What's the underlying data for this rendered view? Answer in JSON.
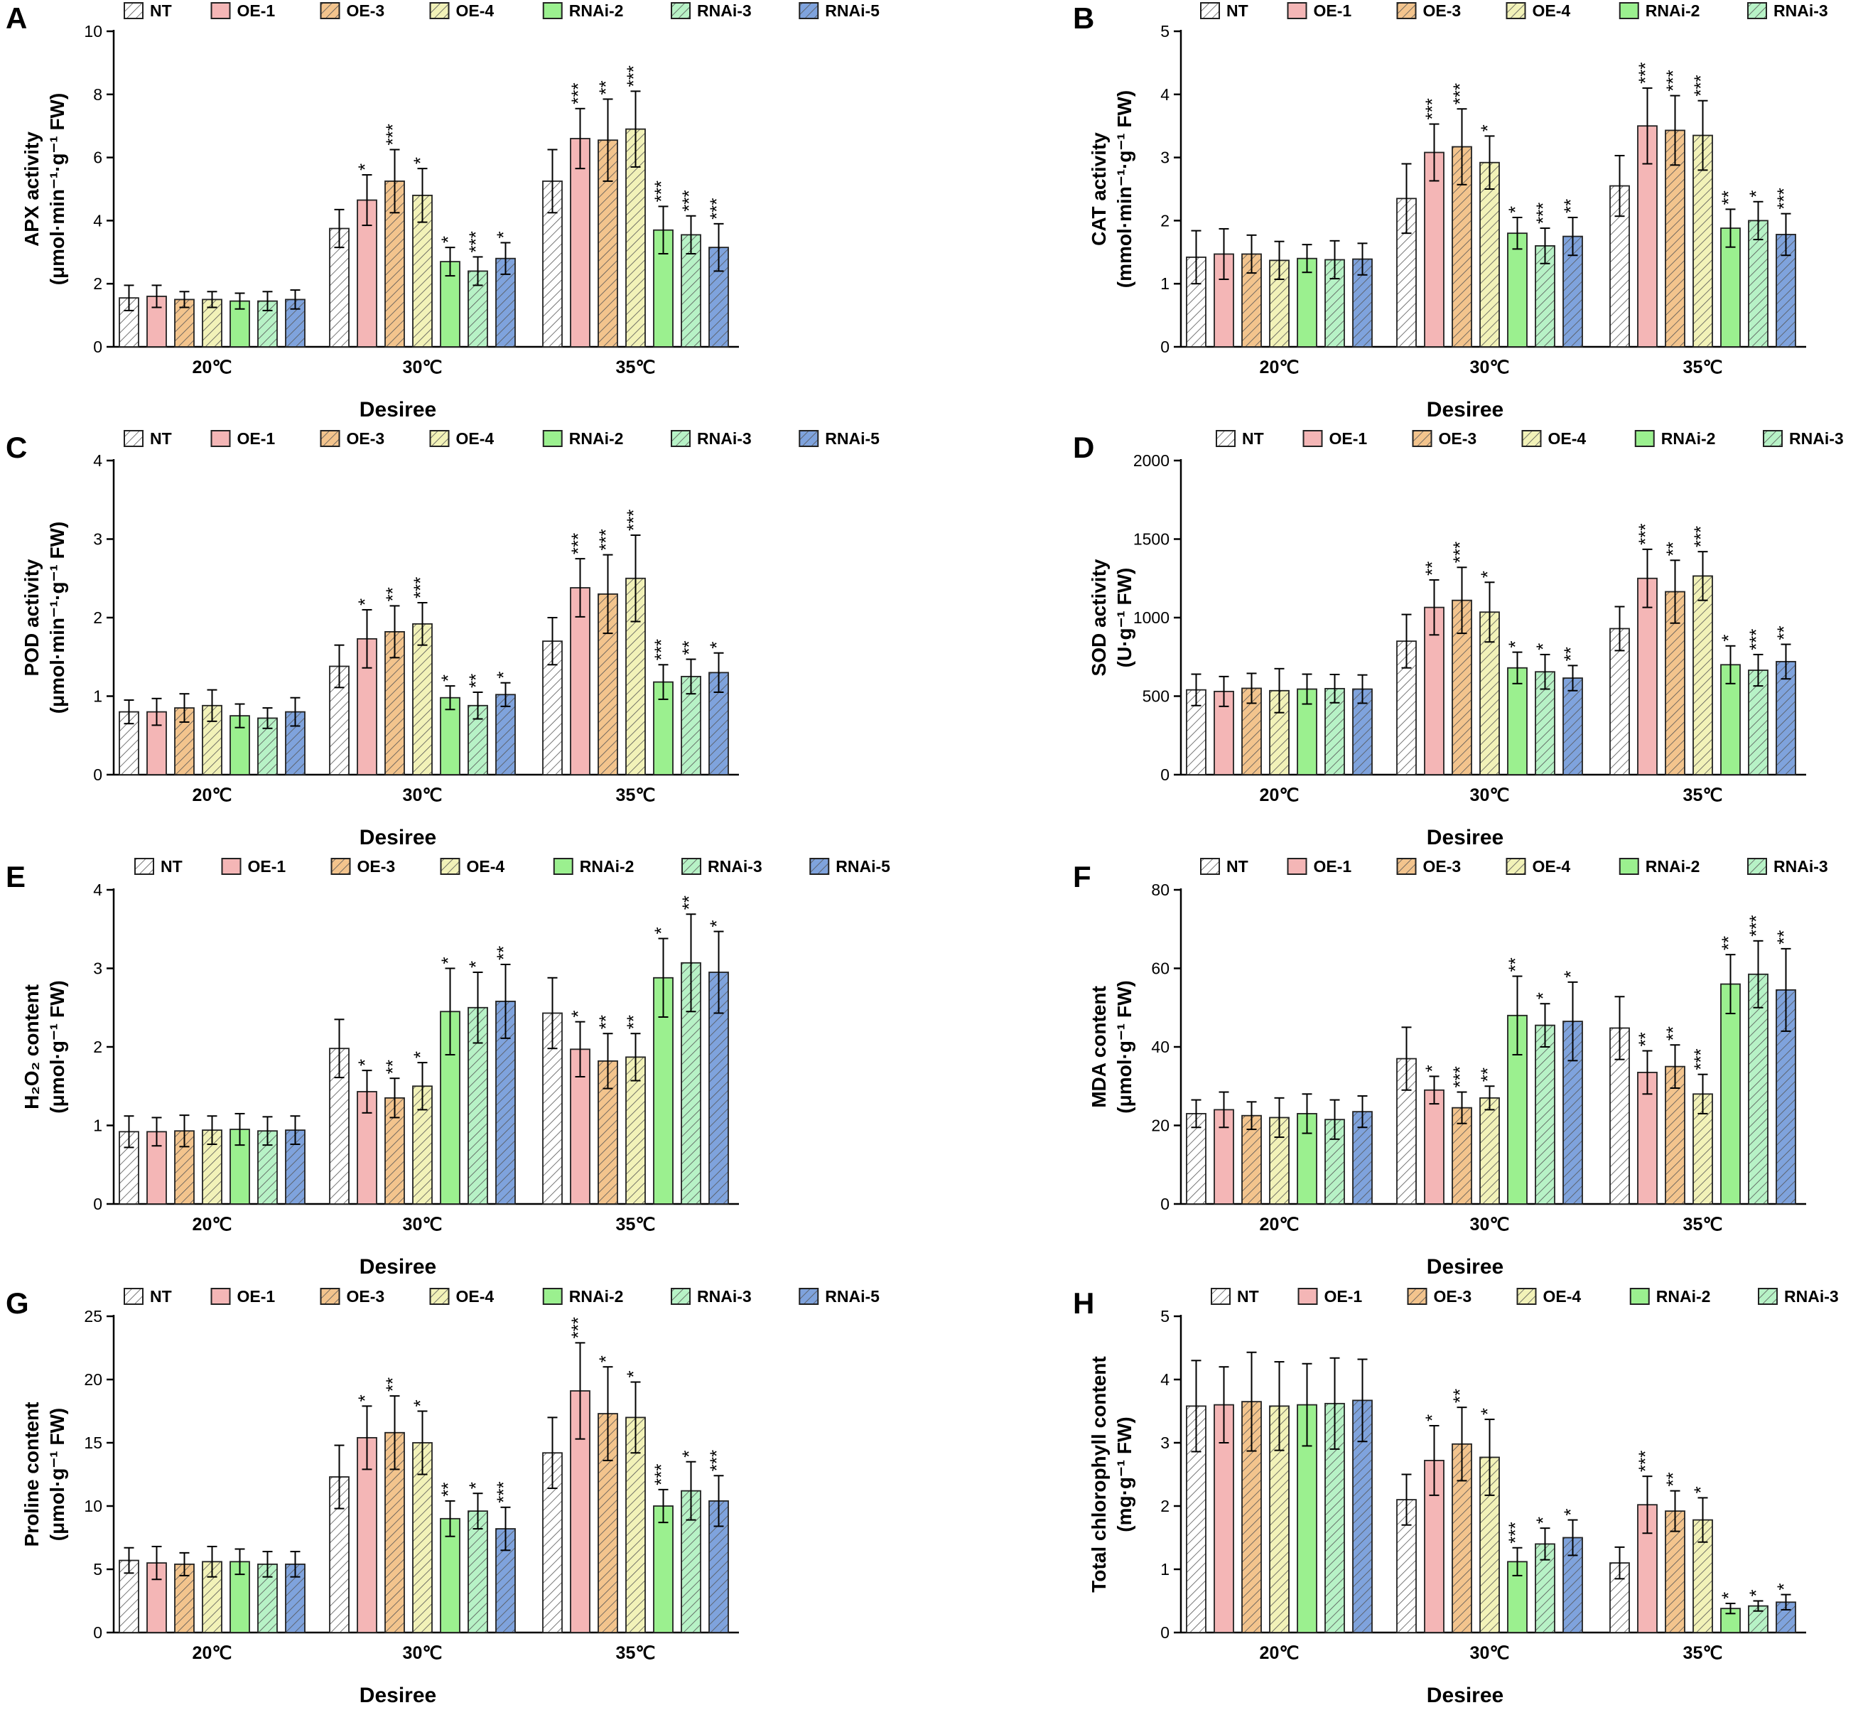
{
  "figure": {
    "legend": [
      "NT",
      "OE-1",
      "OE-3",
      "OE-4",
      "RNAi-2",
      "RNAi-3",
      "RNAi-5"
    ],
    "colors": {
      "NT": "#ffffff",
      "OE-1": "#f4b6b6",
      "OE-3": "#f3c48d",
      "OE-4": "#f2f2b8",
      "RNAi-2": "#9bf08f",
      "RNAi-3": "#b7f2c6",
      "RNAi-5": "#7fa3dd"
    },
    "hatched": [
      "NT",
      "OE-3",
      "OE-4",
      "RNAi-3",
      "RNAi-5"
    ],
    "categories": [
      "20℃",
      "30℃",
      "35℃"
    ],
    "xlabel": "Desiree"
  },
  "chart_data": [
    {
      "panel": "A",
      "type": "bar",
      "ylabel_line1": "APX activity",
      "ylabel_line2": "(μmol·min⁻¹·g⁻¹ FW)",
      "ylim": [
        0,
        10
      ],
      "yticks": [
        0,
        2,
        4,
        6,
        8,
        10
      ],
      "series": [
        {
          "name": "NT",
          "values": [
            1.55,
            3.75,
            5.25
          ],
          "errors": [
            0.4,
            0.6,
            1.0
          ],
          "sig": [
            "",
            "",
            ""
          ]
        },
        {
          "name": "OE-1",
          "values": [
            1.6,
            4.65,
            6.6
          ],
          "errors": [
            0.35,
            0.8,
            0.95
          ],
          "sig": [
            "",
            "*",
            "***"
          ]
        },
        {
          "name": "OE-3",
          "values": [
            1.5,
            5.25,
            6.55
          ],
          "errors": [
            0.25,
            1.0,
            1.3
          ],
          "sig": [
            "",
            "***",
            "**"
          ]
        },
        {
          "name": "OE-4",
          "values": [
            1.5,
            4.8,
            6.9
          ],
          "errors": [
            0.25,
            0.85,
            1.2
          ],
          "sig": [
            "",
            "*",
            "***"
          ]
        },
        {
          "name": "RNAi-2",
          "values": [
            1.45,
            2.7,
            3.7
          ],
          "errors": [
            0.25,
            0.45,
            0.75
          ],
          "sig": [
            "",
            "*",
            "***"
          ]
        },
        {
          "name": "RNAi-3",
          "values": [
            1.45,
            2.4,
            3.55
          ],
          "errors": [
            0.3,
            0.45,
            0.6
          ],
          "sig": [
            "",
            "***",
            "***"
          ]
        },
        {
          "name": "RNAi-5",
          "values": [
            1.5,
            2.8,
            3.15
          ],
          "errors": [
            0.3,
            0.5,
            0.75
          ],
          "sig": [
            "",
            "*",
            "***"
          ]
        }
      ]
    },
    {
      "panel": "B",
      "type": "bar",
      "ylabel_line1": "CAT activity",
      "ylabel_line2": "(mmol·min⁻¹·g⁻¹ FW)",
      "ylim": [
        0,
        5
      ],
      "yticks": [
        0,
        1,
        2,
        3,
        4,
        5
      ],
      "series": [
        {
          "name": "NT",
          "values": [
            1.42,
            2.35,
            2.55
          ],
          "errors": [
            0.42,
            0.55,
            0.48
          ],
          "sig": [
            "",
            "",
            ""
          ]
        },
        {
          "name": "OE-1",
          "values": [
            1.47,
            3.08,
            3.5
          ],
          "errors": [
            0.4,
            0.45,
            0.6
          ],
          "sig": [
            "",
            "***",
            "***"
          ]
        },
        {
          "name": "OE-3",
          "values": [
            1.47,
            3.17,
            3.43
          ],
          "errors": [
            0.3,
            0.6,
            0.55
          ],
          "sig": [
            "",
            "***",
            "***"
          ]
        },
        {
          "name": "OE-4",
          "values": [
            1.37,
            2.92,
            3.35
          ],
          "errors": [
            0.3,
            0.42,
            0.55
          ],
          "sig": [
            "",
            "*",
            "***"
          ]
        },
        {
          "name": "RNAi-2",
          "values": [
            1.4,
            1.8,
            1.88
          ],
          "errors": [
            0.22,
            0.25,
            0.3
          ],
          "sig": [
            "",
            "*",
            "**"
          ]
        },
        {
          "name": "RNAi-3",
          "values": [
            1.38,
            1.6,
            2.0
          ],
          "errors": [
            0.3,
            0.28,
            0.3
          ],
          "sig": [
            "",
            "***",
            "*"
          ]
        },
        {
          "name": "RNAi-5",
          "values": [
            1.39,
            1.75,
            1.78
          ],
          "errors": [
            0.25,
            0.3,
            0.33
          ],
          "sig": [
            "",
            "**",
            "***"
          ]
        }
      ]
    },
    {
      "panel": "C",
      "type": "bar",
      "ylabel_line1": "POD activity",
      "ylabel_line2": "(μmol·min⁻¹·g⁻¹ FW)",
      "ylim": [
        0,
        4
      ],
      "yticks": [
        0,
        1,
        2,
        3,
        4
      ],
      "series": [
        {
          "name": "NT",
          "values": [
            0.8,
            1.38,
            1.7
          ],
          "errors": [
            0.15,
            0.27,
            0.3
          ],
          "sig": [
            "",
            "",
            ""
          ]
        },
        {
          "name": "OE-1",
          "values": [
            0.8,
            1.73,
            2.38
          ],
          "errors": [
            0.17,
            0.37,
            0.37
          ],
          "sig": [
            "",
            "*",
            "***"
          ]
        },
        {
          "name": "OE-3",
          "values": [
            0.85,
            1.82,
            2.3
          ],
          "errors": [
            0.18,
            0.33,
            0.5
          ],
          "sig": [
            "",
            "**",
            "***"
          ]
        },
        {
          "name": "OE-4",
          "values": [
            0.88,
            1.92,
            2.5
          ],
          "errors": [
            0.2,
            0.27,
            0.55
          ],
          "sig": [
            "",
            "***",
            "***"
          ]
        },
        {
          "name": "RNAi-2",
          "values": [
            0.75,
            0.98,
            1.18
          ],
          "errors": [
            0.15,
            0.15,
            0.22
          ],
          "sig": [
            "",
            "*",
            "***"
          ]
        },
        {
          "name": "RNAi-3",
          "values": [
            0.72,
            0.88,
            1.25
          ],
          "errors": [
            0.13,
            0.17,
            0.22
          ],
          "sig": [
            "",
            "**",
            "**"
          ]
        },
        {
          "name": "RNAi-5",
          "values": [
            0.8,
            1.02,
            1.3
          ],
          "errors": [
            0.18,
            0.15,
            0.25
          ],
          "sig": [
            "",
            "*",
            "*"
          ]
        }
      ]
    },
    {
      "panel": "D",
      "type": "bar",
      "ylabel_line1": "SOD activity",
      "ylabel_line2": "(U·g⁻¹ FW)",
      "ylim": [
        0,
        2000
      ],
      "yticks": [
        0,
        500,
        1000,
        1500,
        2000
      ],
      "series": [
        {
          "name": "NT",
          "values": [
            540,
            850,
            930
          ],
          "errors": [
            100,
            170,
            140
          ],
          "sig": [
            "",
            "",
            ""
          ]
        },
        {
          "name": "OE-1",
          "values": [
            530,
            1065,
            1250
          ],
          "errors": [
            95,
            175,
            185
          ],
          "sig": [
            "",
            "**",
            "***"
          ]
        },
        {
          "name": "OE-3",
          "values": [
            550,
            1110,
            1165
          ],
          "errors": [
            95,
            210,
            200
          ],
          "sig": [
            "",
            "***",
            "**"
          ]
        },
        {
          "name": "OE-4",
          "values": [
            535,
            1035,
            1265
          ],
          "errors": [
            140,
            190,
            155
          ],
          "sig": [
            "",
            "*",
            "***"
          ]
        },
        {
          "name": "RNAi-2",
          "values": [
            545,
            680,
            700
          ],
          "errors": [
            95,
            100,
            120
          ],
          "sig": [
            "",
            "*",
            "*"
          ]
        },
        {
          "name": "RNAi-3",
          "values": [
            548,
            655,
            665
          ],
          "errors": [
            90,
            110,
            100
          ],
          "sig": [
            "",
            "*",
            "***"
          ]
        },
        {
          "name": "RNAi-5",
          "values": [
            545,
            615,
            720
          ],
          "errors": [
            90,
            80,
            110
          ],
          "sig": [
            "",
            "**",
            "**"
          ]
        }
      ]
    },
    {
      "panel": "E",
      "type": "bar",
      "ylabel_line1": "H₂O₂ content",
      "ylabel_line2": "(μmol·g⁻¹ FW)",
      "ylim": [
        0,
        4
      ],
      "yticks": [
        0,
        1,
        2,
        3,
        4
      ],
      "series": [
        {
          "name": "NT",
          "values": [
            0.92,
            1.98,
            2.43
          ],
          "errors": [
            0.2,
            0.37,
            0.45
          ],
          "sig": [
            "",
            "",
            ""
          ]
        },
        {
          "name": "OE-1",
          "values": [
            0.92,
            1.43,
            1.97
          ],
          "errors": [
            0.18,
            0.27,
            0.35
          ],
          "sig": [
            "",
            "*",
            "*"
          ]
        },
        {
          "name": "OE-3",
          "values": [
            0.93,
            1.35,
            1.82
          ],
          "errors": [
            0.2,
            0.25,
            0.35
          ],
          "sig": [
            "",
            "**",
            "**"
          ]
        },
        {
          "name": "OE-4",
          "values": [
            0.94,
            1.5,
            1.87
          ],
          "errors": [
            0.18,
            0.3,
            0.3
          ],
          "sig": [
            "",
            "*",
            "**"
          ]
        },
        {
          "name": "RNAi-2",
          "values": [
            0.95,
            2.45,
            2.88
          ],
          "errors": [
            0.2,
            0.55,
            0.5
          ],
          "sig": [
            "",
            "*",
            "*"
          ]
        },
        {
          "name": "RNAi-3",
          "values": [
            0.93,
            2.5,
            3.07
          ],
          "errors": [
            0.18,
            0.45,
            0.62
          ],
          "sig": [
            "",
            "*",
            "**"
          ]
        },
        {
          "name": "RNAi-5",
          "values": [
            0.94,
            2.58,
            2.95
          ],
          "errors": [
            0.18,
            0.47,
            0.52
          ],
          "sig": [
            "",
            "**",
            "*"
          ]
        }
      ]
    },
    {
      "panel": "F",
      "type": "bar",
      "ylabel_line1": "MDA content",
      "ylabel_line2": "(μmol·g⁻¹ FW)",
      "ylim": [
        0,
        80
      ],
      "yticks": [
        0,
        20,
        40,
        60,
        80
      ],
      "series": [
        {
          "name": "NT",
          "values": [
            23,
            37,
            44.8
          ],
          "errors": [
            3.5,
            8,
            8
          ],
          "sig": [
            "",
            "",
            ""
          ]
        },
        {
          "name": "OE-1",
          "values": [
            24,
            29,
            33.5
          ],
          "errors": [
            4.5,
            3.5,
            5.5
          ],
          "sig": [
            "",
            "*",
            "**"
          ]
        },
        {
          "name": "OE-3",
          "values": [
            22.5,
            24.5,
            35
          ],
          "errors": [
            3.5,
            4,
            5.5
          ],
          "sig": [
            "",
            "***",
            "**"
          ]
        },
        {
          "name": "OE-4",
          "values": [
            22,
            27,
            28
          ],
          "errors": [
            5,
            3,
            5
          ],
          "sig": [
            "",
            "**",
            "***"
          ]
        },
        {
          "name": "RNAi-2",
          "values": [
            23,
            48,
            56
          ],
          "errors": [
            5,
            10,
            7.5
          ],
          "sig": [
            "",
            "**",
            "**"
          ]
        },
        {
          "name": "RNAi-3",
          "values": [
            21.5,
            45.5,
            58.5
          ],
          "errors": [
            5,
            5.5,
            8.5
          ],
          "sig": [
            "",
            "*",
            "***"
          ]
        },
        {
          "name": "RNAi-5",
          "values": [
            23.5,
            46.5,
            54.5
          ],
          "errors": [
            4,
            10,
            10.5
          ],
          "sig": [
            "",
            "*",
            "**"
          ]
        }
      ]
    },
    {
      "panel": "G",
      "type": "bar",
      "ylabel_line1": "Proline content",
      "ylabel_line2": "(μmol·g⁻¹ FW)",
      "ylim": [
        0,
        25
      ],
      "yticks": [
        0,
        5,
        10,
        15,
        20,
        25
      ],
      "series": [
        {
          "name": "NT",
          "values": [
            5.7,
            12.3,
            14.2
          ],
          "errors": [
            1.0,
            2.5,
            2.8
          ],
          "sig": [
            "",
            "",
            ""
          ]
        },
        {
          "name": "OE-1",
          "values": [
            5.5,
            15.4,
            19.1
          ],
          "errors": [
            1.3,
            2.5,
            3.8
          ],
          "sig": [
            "",
            "*",
            "***"
          ]
        },
        {
          "name": "OE-3",
          "values": [
            5.4,
            15.8,
            17.3
          ],
          "errors": [
            0.9,
            2.9,
            3.7
          ],
          "sig": [
            "",
            "**",
            "*"
          ]
        },
        {
          "name": "OE-4",
          "values": [
            5.6,
            15.0,
            17.0
          ],
          "errors": [
            1.2,
            2.5,
            2.8
          ],
          "sig": [
            "",
            "*",
            "*"
          ]
        },
        {
          "name": "RNAi-2",
          "values": [
            5.6,
            9.0,
            10.0
          ],
          "errors": [
            1.0,
            1.4,
            1.3
          ],
          "sig": [
            "",
            "**",
            "***"
          ]
        },
        {
          "name": "RNAi-3",
          "values": [
            5.4,
            9.6,
            11.2
          ],
          "errors": [
            1.0,
            1.4,
            2.3
          ],
          "sig": [
            "",
            "*",
            "*"
          ]
        },
        {
          "name": "RNAi-5",
          "values": [
            5.4,
            8.2,
            10.4
          ],
          "errors": [
            1.0,
            1.7,
            2.0
          ],
          "sig": [
            "",
            "***",
            "***"
          ]
        }
      ]
    },
    {
      "panel": "H",
      "type": "bar",
      "ylabel_line1": "Total chlorophyll content",
      "ylabel_line2": "(mg·g⁻¹ FW)",
      "ylim": [
        0,
        5
      ],
      "yticks": [
        0,
        1,
        2,
        3,
        4,
        5
      ],
      "series": [
        {
          "name": "NT",
          "values": [
            3.58,
            2.1,
            1.1
          ],
          "errors": [
            0.72,
            0.4,
            0.25
          ],
          "sig": [
            "",
            "",
            ""
          ]
        },
        {
          "name": "OE-1",
          "values": [
            3.6,
            2.72,
            2.02
          ],
          "errors": [
            0.6,
            0.55,
            0.45
          ],
          "sig": [
            "",
            "*",
            "***"
          ]
        },
        {
          "name": "OE-3",
          "values": [
            3.65,
            2.98,
            1.92
          ],
          "errors": [
            0.78,
            0.58,
            0.32
          ],
          "sig": [
            "",
            "**",
            "**"
          ]
        },
        {
          "name": "OE-4",
          "values": [
            3.58,
            2.77,
            1.78
          ],
          "errors": [
            0.7,
            0.6,
            0.35
          ],
          "sig": [
            "",
            "*",
            "*"
          ]
        },
        {
          "name": "RNAi-2",
          "values": [
            3.6,
            1.12,
            0.38
          ],
          "errors": [
            0.65,
            0.22,
            0.08
          ],
          "sig": [
            "",
            "***",
            "*"
          ]
        },
        {
          "name": "RNAi-3",
          "values": [
            3.62,
            1.4,
            0.42
          ],
          "errors": [
            0.72,
            0.25,
            0.08
          ],
          "sig": [
            "",
            "*",
            "*"
          ]
        },
        {
          "name": "RNAi-5",
          "values": [
            3.67,
            1.5,
            0.48
          ],
          "errors": [
            0.65,
            0.28,
            0.12
          ],
          "sig": [
            "",
            "*",
            "*"
          ]
        }
      ]
    }
  ]
}
